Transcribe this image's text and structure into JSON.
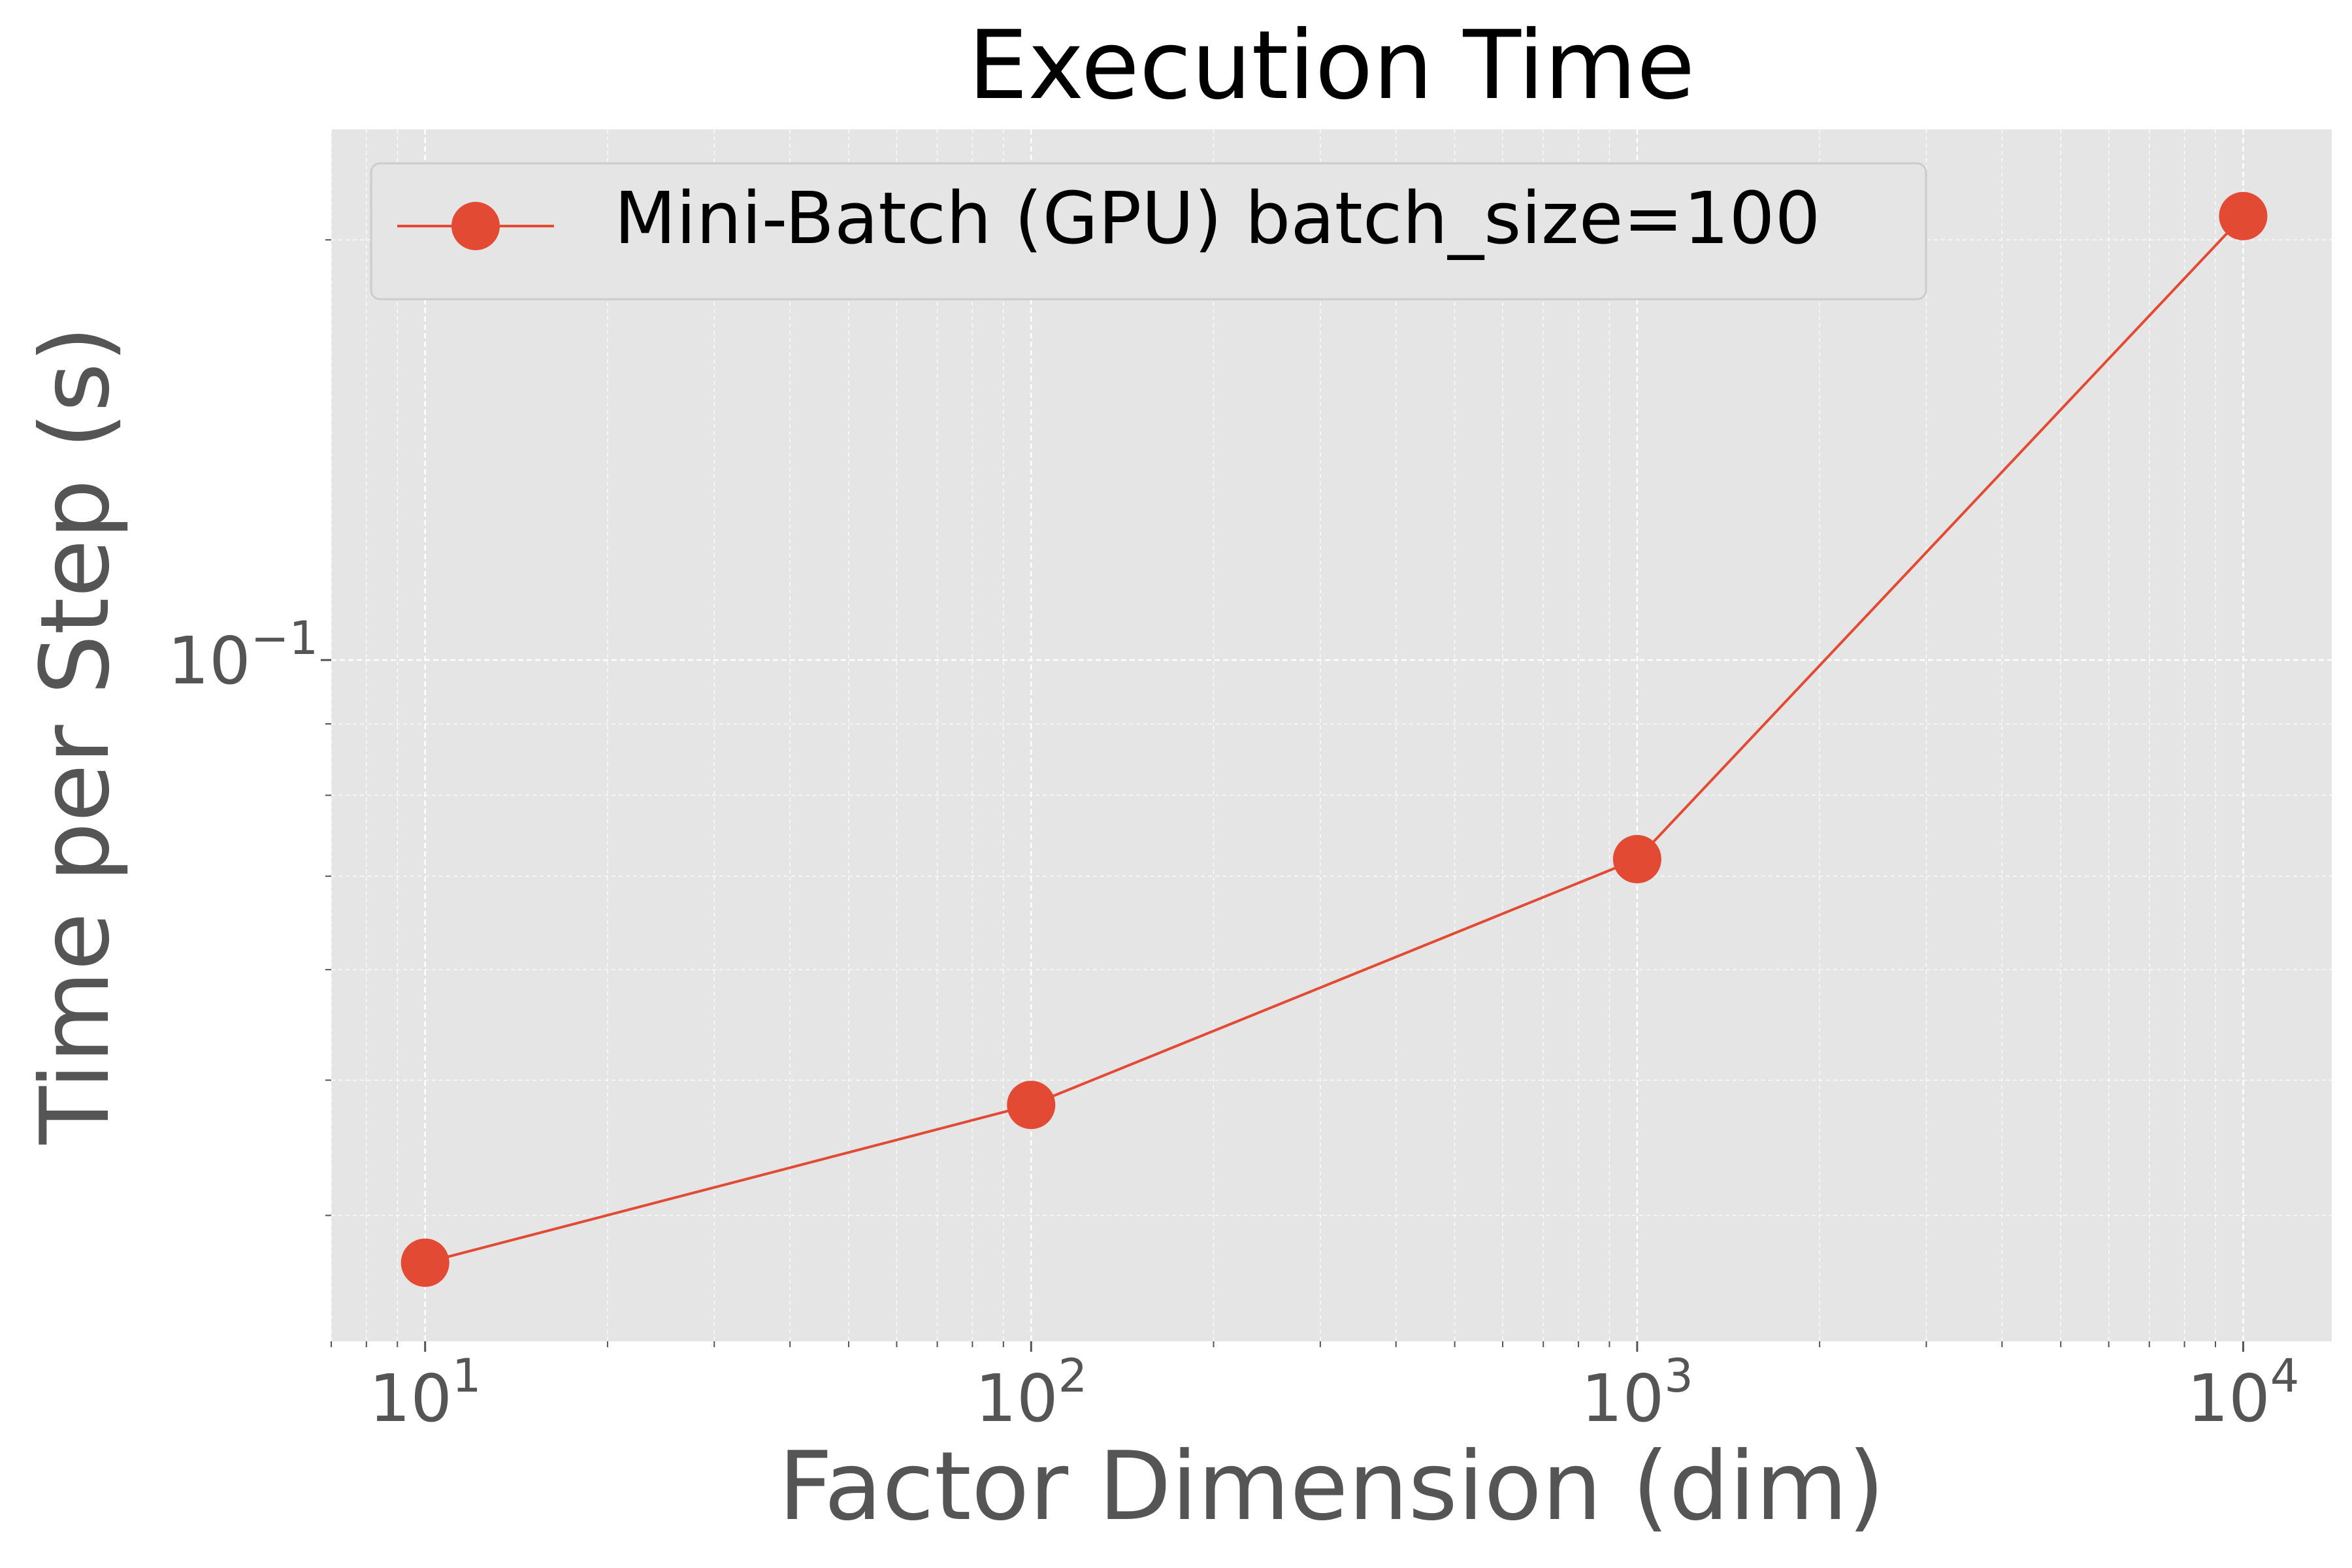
{
  "chart_data": {
    "type": "line",
    "title": "Execution Time",
    "xlabel": "Factor Dimension (dim)",
    "ylabel": "Time per Step (s)",
    "x_scale": "log",
    "y_scale": "log",
    "xlim": [
      7,
      14000
    ],
    "ylim": [
      0.0325,
      0.24
    ],
    "x_ticks": [
      {
        "value": 10,
        "base": "10",
        "exp": "1"
      },
      {
        "value": 100,
        "base": "10",
        "exp": "2"
      },
      {
        "value": 1000,
        "base": "10",
        "exp": "3"
      },
      {
        "value": 10000,
        "base": "10",
        "exp": "4"
      }
    ],
    "y_ticks": [
      {
        "value": 0.1,
        "base": "10",
        "exp": "−1"
      }
    ],
    "grid": true,
    "legend_position": "top-left",
    "series": [
      {
        "name": "Mini-Batch (GPU) batch_size=100",
        "color": "#E24A33",
        "marker": "circle",
        "x": [
          10,
          100,
          1000,
          10000
        ],
        "y": [
          0.037,
          0.048,
          0.072,
          0.208
        ]
      }
    ]
  },
  "colors": {
    "plot_background": "#E5E5E5",
    "grid": "#FFFFFF",
    "title_text": "#000000",
    "axis_label_text": "#555555",
    "tick_text": "#555555"
  }
}
